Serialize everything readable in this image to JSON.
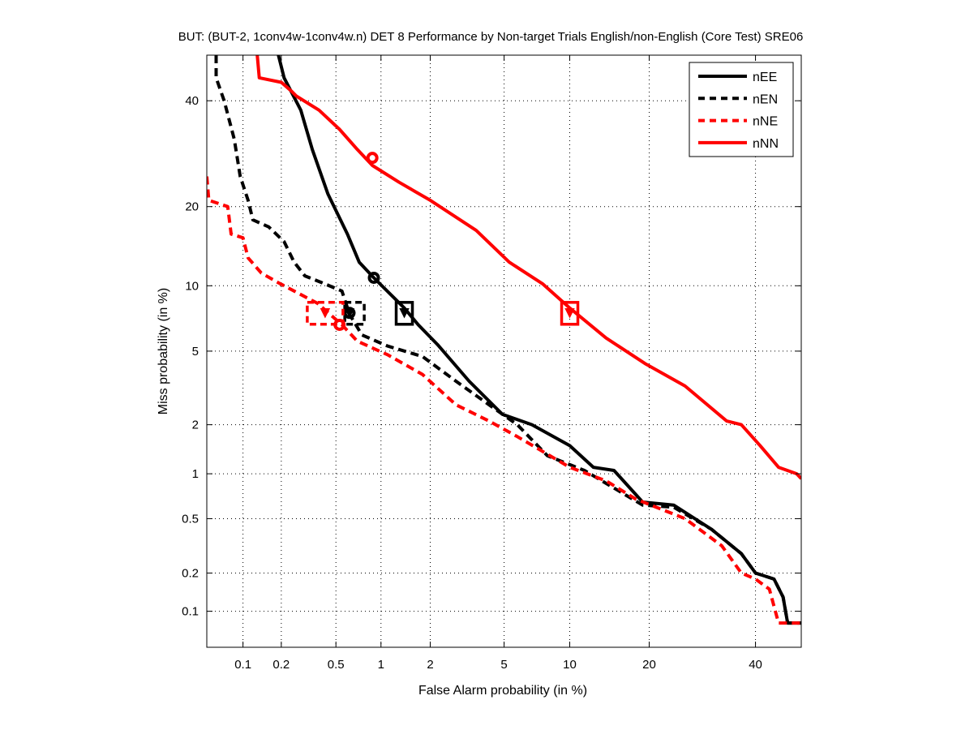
{
  "chart_data": {
    "type": "line",
    "scale": "probit (normal deviate), DET",
    "title": "BUT: (BUT-2, 1conv4w-1conv4w.n) DET 8 Performance by Non-target Trials English/non-English (Core Test) SRE06",
    "xlabel": "False Alarm probability (in %)",
    "ylabel": "Miss probability (in %)",
    "xlim": [
      0.05,
      50
    ],
    "ylim": [
      0.05,
      50
    ],
    "xticks": [
      0.1,
      0.2,
      0.5,
      1,
      2,
      5,
      10,
      20,
      40
    ],
    "xtick_labels": [
      "0.1",
      "0.2",
      "0.5",
      "1",
      "2",
      "5",
      "10",
      "20",
      "40"
    ],
    "yticks": [
      0.1,
      0.2,
      0.5,
      1,
      2,
      5,
      10,
      20,
      40
    ],
    "ytick_labels": [
      "0.1",
      "0.2",
      "0.5",
      "1",
      "2",
      "5",
      "10",
      "20",
      "40"
    ],
    "grid": true,
    "legend_position": "top-right",
    "series": [
      {
        "name": "nEE",
        "color": "#000000",
        "dash": false,
        "points": [
          [
            0.19,
            50
          ],
          [
            0.21,
            45
          ],
          [
            0.28,
            38
          ],
          [
            0.34,
            30
          ],
          [
            0.44,
            22
          ],
          [
            0.6,
            16
          ],
          [
            0.72,
            12.5
          ],
          [
            0.9,
            10.8
          ],
          [
            1.4,
            8
          ],
          [
            1.7,
            6.7
          ],
          [
            2.2,
            5.4
          ],
          [
            3.3,
            3.5
          ],
          [
            4.9,
            2.3
          ],
          [
            6.8,
            2.0
          ],
          [
            10,
            1.5
          ],
          [
            12.5,
            1.1
          ],
          [
            15,
            1.05
          ],
          [
            19,
            0.65
          ],
          [
            24,
            0.62
          ],
          [
            31,
            0.42
          ],
          [
            37,
            0.28
          ],
          [
            40,
            0.2
          ],
          [
            44,
            0.18
          ],
          [
            46,
            0.13
          ],
          [
            47,
            0.08
          ],
          [
            50,
            0.08
          ]
        ],
        "markers": {
          "circle": [
            0.9,
            10.8
          ],
          "square": [
            1.4,
            7.6
          ],
          "triangle": [
            1.4,
            7.6
          ]
        }
      },
      {
        "name": "nEN",
        "color": "#000000",
        "dash": true,
        "points": [
          [
            0.06,
            50
          ],
          [
            0.06,
            45
          ],
          [
            0.07,
            40
          ],
          [
            0.085,
            32
          ],
          [
            0.095,
            25
          ],
          [
            0.11,
            21
          ],
          [
            0.12,
            18
          ],
          [
            0.16,
            17
          ],
          [
            0.21,
            15
          ],
          [
            0.25,
            12.5
          ],
          [
            0.3,
            11
          ],
          [
            0.4,
            10.3
          ],
          [
            0.55,
            9.5
          ],
          [
            0.62,
            7.5
          ],
          [
            0.75,
            6
          ],
          [
            1.1,
            5.3
          ],
          [
            1.8,
            4.7
          ],
          [
            2.8,
            3.5
          ],
          [
            4.2,
            2.6
          ],
          [
            5.8,
            2.0
          ],
          [
            8,
            1.3
          ],
          [
            11.5,
            1.05
          ],
          [
            19,
            0.62
          ],
          [
            24,
            0.6
          ],
          [
            31,
            0.42
          ],
          [
            37,
            0.28
          ],
          [
            40,
            0.2
          ],
          [
            44,
            0.18
          ],
          [
            46,
            0.13
          ],
          [
            47,
            0.08
          ],
          [
            50,
            0.08
          ]
        ],
        "markers": {
          "circle": [
            0.62,
            7.6
          ],
          "square": [
            0.67,
            7.6
          ],
          "triangle": [
            0.62,
            7.6
          ]
        }
      },
      {
        "name": "nNE",
        "color": "#ff0000",
        "dash": true,
        "points": [
          [
            0.05,
            25
          ],
          [
            0.052,
            21
          ],
          [
            0.075,
            20
          ],
          [
            0.08,
            16
          ],
          [
            0.1,
            15.5
          ],
          [
            0.11,
            13
          ],
          [
            0.14,
            11.3
          ],
          [
            0.19,
            10.3
          ],
          [
            0.25,
            9.5
          ],
          [
            0.37,
            8.4
          ],
          [
            0.55,
            6.7
          ],
          [
            0.7,
            5.6
          ],
          [
            1.1,
            4.8
          ],
          [
            1.8,
            3.8
          ],
          [
            2.8,
            2.6
          ],
          [
            4.2,
            2.1
          ],
          [
            5.8,
            1.7
          ],
          [
            10,
            1.1
          ],
          [
            14,
            0.9
          ],
          [
            18,
            0.68
          ],
          [
            26,
            0.5
          ],
          [
            33,
            0.32
          ],
          [
            37,
            0.2
          ],
          [
            40,
            0.18
          ],
          [
            43,
            0.15
          ],
          [
            45,
            0.08
          ],
          [
            50,
            0.08
          ]
        ],
        "markers": {
          "circle": [
            0.53,
            6.7
          ],
          "square": [
            0.42,
            7.6
          ],
          "triangle": [
            0.42,
            7.6
          ]
        }
      },
      {
        "name": "nNN",
        "color": "#ff0000",
        "dash": false,
        "points": [
          [
            0.13,
            50
          ],
          [
            0.135,
            45
          ],
          [
            0.2,
            44
          ],
          [
            0.24,
            42
          ],
          [
            0.26,
            41
          ],
          [
            0.38,
            38
          ],
          [
            0.53,
            34
          ],
          [
            0.7,
            30
          ],
          [
            0.88,
            27
          ],
          [
            1.3,
            24
          ],
          [
            2,
            21
          ],
          [
            3.6,
            16.5
          ],
          [
            5.3,
            12.5
          ],
          [
            7.6,
            10.2
          ],
          [
            10,
            8
          ],
          [
            14,
            5.8
          ],
          [
            19.5,
            4.3
          ],
          [
            26,
            3.3
          ],
          [
            34,
            2.1
          ],
          [
            37,
            2.0
          ],
          [
            41,
            1.5
          ],
          [
            45,
            1.1
          ],
          [
            49,
            1.0
          ],
          [
            50,
            0.93
          ]
        ],
        "markers": {
          "circle": [
            0.88,
            28.4
          ],
          "square": [
            10,
            7.6
          ],
          "triangle": [
            10,
            7.6
          ]
        }
      }
    ]
  }
}
